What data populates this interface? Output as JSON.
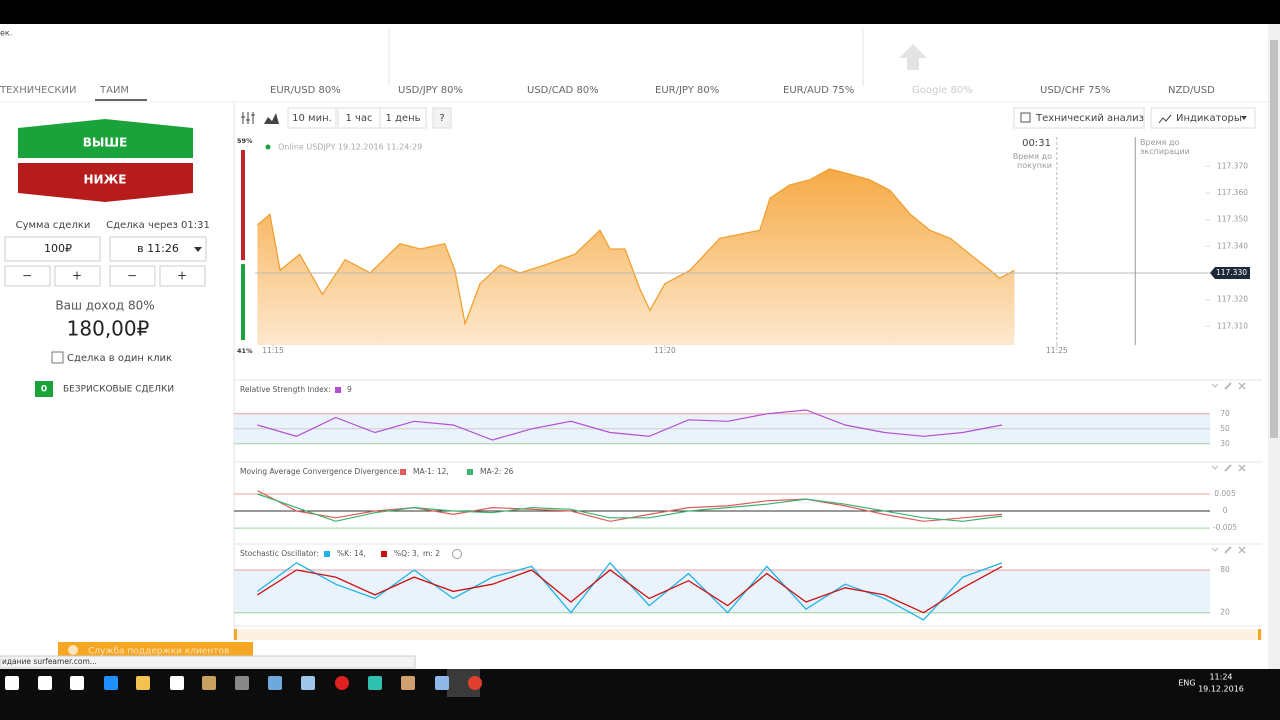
{
  "browser": {
    "corner": "ек.",
    "status": "идание surfeamer.com..."
  },
  "left_tabs": [
    "ТЕХНИЧЕСКИЙ",
    "ТАЙМ"
  ],
  "tabs": [
    "EUR/USD 80%",
    "USD/JPY 80%",
    "USD/CAD 80%",
    "EUR/JPY 80%",
    "EUR/AUD 75%",
    "Google 80%",
    "USD/CHF 75%",
    "NZD/USD"
  ],
  "trade": {
    "up": "ВЫШЕ",
    "down": "НИЖЕ",
    "amount_label": "Сумма сделки",
    "time_label": "Сделка через 01:31",
    "amount": "100₽",
    "time": "в 11:26",
    "minus": "−",
    "plus": "+",
    "income_label": "Ваш доход 80%",
    "income": "180,00₽",
    "one_click": "Сделка в один клик",
    "riskfree_count": "0",
    "riskfree": "БЕЗРИСКОВЫЕ СДЕЛКИ"
  },
  "support": "Служба поддержки клиентов",
  "toolbar": {
    "periods": [
      "10 мин.",
      "1 час",
      "1 день",
      "?"
    ],
    "analysis": "Технический анализ",
    "indicators": "Индикаторы"
  },
  "chart_data": {
    "type": "area",
    "title": "Online USDJPY 19.12.2016 11:24:29",
    "timer": "00:31",
    "buy_label": "Время до покупки",
    "expiry_label": "Время до экспирации",
    "color": "#f0a030",
    "x": [
      14.8,
      14.96,
      15.09,
      15.34,
      15.63,
      15.92,
      16.24,
      16.62,
      16.88,
      17.19,
      17.32,
      17.45,
      17.64,
      17.9,
      18.15,
      18.47,
      18.85,
      19.17,
      19.3,
      19.49,
      19.68,
      19.81,
      20.0,
      20.32,
      20.7,
      21.21,
      21.34,
      21.59,
      21.85,
      22.1,
      22.36,
      22.61,
      22.87,
      23.13,
      23.38,
      23.64,
      23.89,
      24.15,
      24.27,
      24.46
    ],
    "values": [
      117.348,
      117.352,
      117.331,
      117.337,
      117.322,
      117.335,
      117.33,
      117.341,
      117.339,
      117.341,
      117.331,
      117.311,
      117.326,
      117.333,
      117.33,
      117.333,
      117.337,
      117.346,
      117.339,
      117.339,
      117.324,
      117.316,
      117.326,
      117.331,
      117.343,
      117.346,
      117.358,
      117.363,
      117.365,
      117.369,
      117.367,
      117.365,
      117.361,
      117.352,
      117.346,
      117.343,
      117.337,
      117.331,
      117.328,
      117.331
    ],
    "xlim": [
      14.77,
      26.89
    ],
    "xticks": [
      {
        "value": 15,
        "label": "11:15"
      },
      {
        "value": 20,
        "label": "11:20"
      },
      {
        "value": 25,
        "label": "11:25"
      }
    ],
    "ylim": [
      117.303,
      117.381
    ],
    "yticks": [
      {
        "value": 117.31,
        "label": "117.310"
      },
      {
        "value": 117.32,
        "label": "117.320"
      },
      {
        "value": 117.34,
        "label": "117.340"
      },
      {
        "value": 117.35,
        "label": "117.350"
      },
      {
        "value": 117.36,
        "label": "117.360"
      },
      {
        "value": 117.37,
        "label": "117.370"
      }
    ],
    "current": {
      "value": 117.33,
      "label": "117.330"
    },
    "buy_deadline": 25,
    "expiry": 26,
    "sentiment": [
      {
        "value": 59,
        "label": "59%",
        "color": "#c0272d"
      },
      {
        "value": 41,
        "label": "41%",
        "color": "#1aa33a"
      }
    ]
  },
  "indicators": {
    "x": [
      14.8,
      15.3,
      15.8,
      16.3,
      16.8,
      17.3,
      17.8,
      18.3,
      18.8,
      19.3,
      19.8,
      20.3,
      20.8,
      21.3,
      21.8,
      22.3,
      22.8,
      23.3,
      23.8,
      24.3
    ],
    "rsi": {
      "title": "Relative Strength Index:",
      "period": "9",
      "color": "#b44fd4",
      "values": [
        55,
        40,
        65,
        45,
        60,
        55,
        35,
        50,
        60,
        45,
        40,
        62,
        60,
        70,
        75,
        55,
        45,
        40,
        45,
        55
      ],
      "ylim": [
        11,
        95
      ],
      "yticks": [
        30,
        50,
        70
      ]
    },
    "macd": {
      "title": "Moving Average Convergence Divergence:",
      "series": [
        {
          "name": "MA-1: 12,",
          "color": "#e05a5a",
          "values": [
            0.006,
            0.0,
            -0.002,
            0.0,
            0.001,
            -0.001,
            0.001,
            0.0005,
            0.0,
            -0.003,
            -0.001,
            0.001,
            0.0015,
            0.003,
            0.0035,
            0.0015,
            -0.001,
            -0.003,
            -0.002,
            -0.001
          ]
        },
        {
          "name": "MA-2: 26",
          "color": "#3cb371",
          "values": [
            0.005,
            0.001,
            -0.003,
            -0.0005,
            0.001,
            0.0,
            -0.0005,
            0.001,
            0.0005,
            -0.002,
            -0.002,
            0.0,
            0.001,
            0.002,
            0.0035,
            0.002,
            0.0,
            -0.002,
            -0.003,
            -0.0015
          ]
        }
      ],
      "ylim": [
        -0.0085,
        0.0091
      ],
      "yticks": [
        -0.005,
        0,
        0.005
      ]
    },
    "stoch": {
      "title": "Stochastic Oscillator:",
      "extra": "m: 2",
      "series": [
        {
          "name": "%K: 14,",
          "color": "#1eb4e6",
          "values": [
            50,
            90,
            60,
            40,
            80,
            40,
            70,
            85,
            20,
            90,
            30,
            75,
            20,
            85,
            25,
            60,
            40,
            10,
            70,
            90
          ]
        },
        {
          "name": "%Q: 3,",
          "color": "#cc1111",
          "values": [
            45,
            80,
            70,
            45,
            70,
            50,
            60,
            80,
            35,
            80,
            40,
            65,
            30,
            75,
            35,
            55,
            45,
            20,
            55,
            85
          ]
        }
      ],
      "ylim": [
        7,
        94
      ],
      "yticks": [
        20,
        80
      ]
    }
  },
  "taskbar": {
    "lang": "ENG",
    "time": "11:24",
    "date": "19.12.2016"
  }
}
